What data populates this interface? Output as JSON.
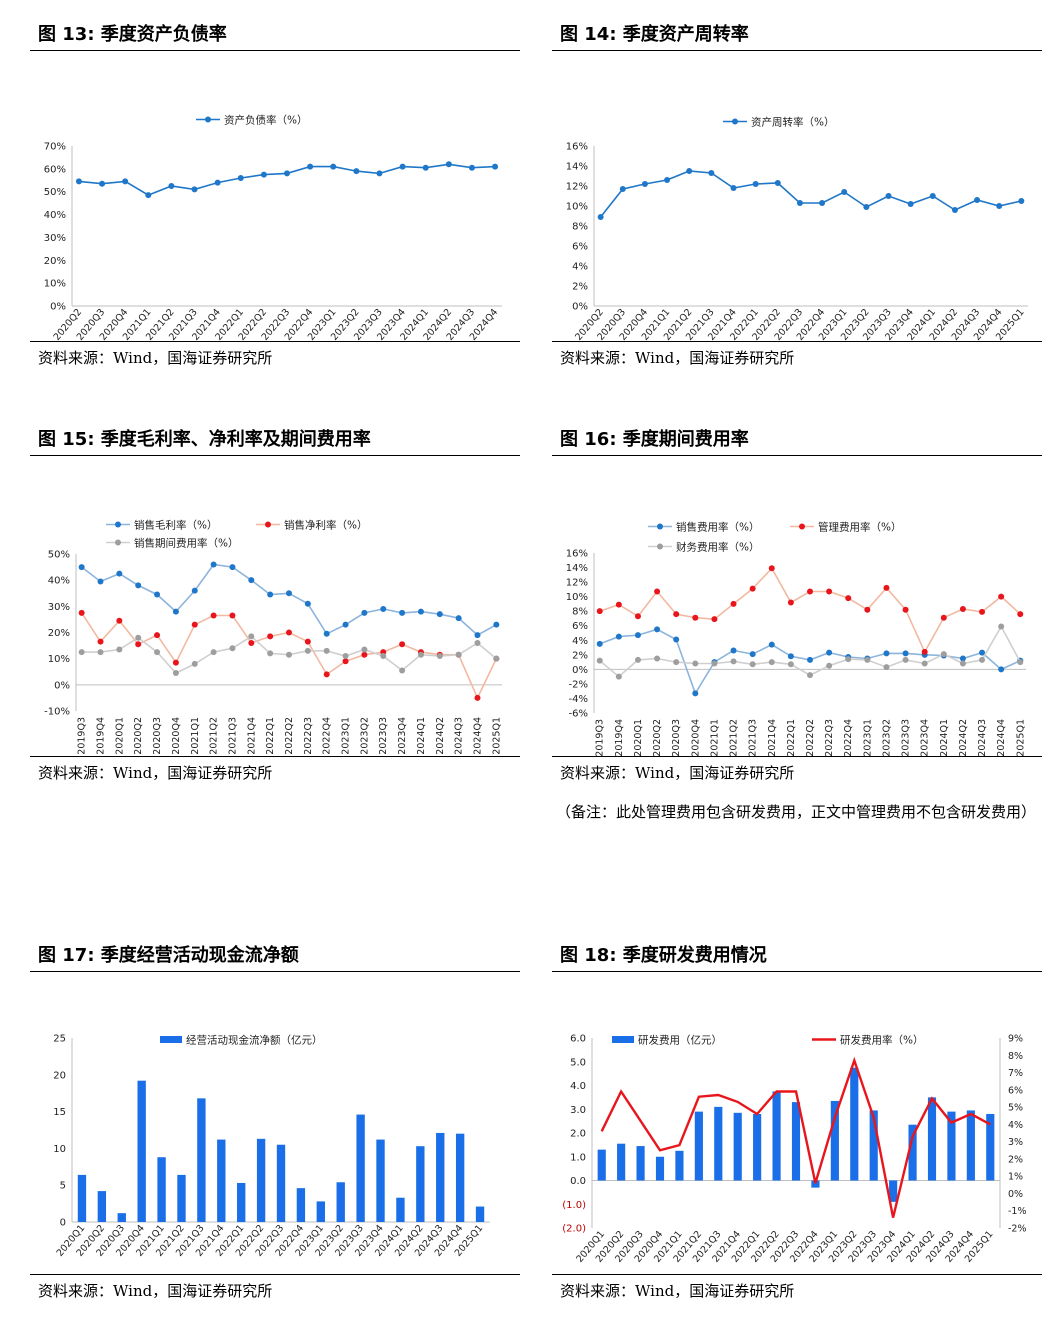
{
  "figures": [
    {
      "title": "图 13:  季度资产负债率",
      "source": "资料来源：Wind，国海证券研究所",
      "chart_data": {
        "type": "line",
        "categories": [
          "2020Q2",
          "2020Q3",
          "2020Q4",
          "2021Q1",
          "2021Q2",
          "2021Q3",
          "2021Q4",
          "2022Q1",
          "2022Q2",
          "2022Q3",
          "2022Q4",
          "2023Q1",
          "2023Q2",
          "2023Q3",
          "2023Q4",
          "2024Q1",
          "2024Q2",
          "2024Q3",
          "2024Q4"
        ],
        "series": [
          {
            "name": "资产负债率（%）",
            "color": "#1f77c9",
            "marker": "#1f77c9",
            "values": [
              54.5,
              53.5,
              54.5,
              48.5,
              52.5,
              51,
              54,
              56,
              57.5,
              58,
              61,
              61,
              59,
              58,
              61,
              60.5,
              62,
              60.5,
              61
            ]
          }
        ],
        "yticks": [
          "70%",
          "60%",
          "50%",
          "40%",
          "30%",
          "20%",
          "10%",
          "0%"
        ],
        "ylim": [
          0,
          70
        ],
        "legend": "top"
      }
    },
    {
      "title": "图 14:  季度资产周转率",
      "source": "资料来源：Wind，国海证券研究所",
      "chart_data": {
        "type": "line",
        "categories": [
          "2020Q2",
          "2020Q3",
          "2020Q4",
          "2021Q1",
          "2021Q2",
          "2021Q3",
          "2021Q4",
          "2022Q1",
          "2022Q2",
          "2022Q3",
          "2022Q4",
          "2023Q1",
          "2023Q2",
          "2023Q3",
          "2023Q4",
          "2024Q1",
          "2024Q2",
          "2024Q3",
          "2024Q4",
          "2025Q1"
        ],
        "series": [
          {
            "name": "资产周转率（%）",
            "color": "#1f77c9",
            "marker": "#1f77c9",
            "values": [
              8.9,
              11.7,
              12.2,
              12.6,
              13.5,
              13.3,
              11.8,
              12.2,
              12.3,
              10.3,
              10.3,
              11.4,
              9.9,
              11,
              10.2,
              11,
              9.6,
              10.6,
              10,
              10.5
            ]
          }
        ],
        "yticks": [
          "16%",
          "14%",
          "12%",
          "10%",
          "8%",
          "6%",
          "4%",
          "2%",
          "0%"
        ],
        "ylim": [
          0,
          16
        ],
        "legend": "top"
      }
    },
    {
      "title": "图 15:  季度毛利率、净利率及期间费用率",
      "source": "资料来源：Wind，国海证券研究所",
      "chart_data": {
        "type": "line",
        "categories": [
          "2019Q3",
          "2019Q4",
          "2020Q1",
          "2020Q2",
          "2020Q3",
          "2020Q4",
          "2021Q1",
          "2021Q2",
          "2021Q3",
          "2021Q4",
          "2022Q1",
          "2022Q2",
          "2022Q3",
          "2022Q4",
          "2023Q1",
          "2023Q2",
          "2023Q3",
          "2023Q4",
          "2024Q1",
          "2024Q2",
          "2024Q3",
          "2024Q4",
          "2025Q1"
        ],
        "series": [
          {
            "name": "销售毛利率（%）",
            "color": "#8db4dc",
            "marker": "#1f77c9",
            "values": [
              45,
              39.5,
              42.5,
              38,
              34.5,
              28,
              36,
              46,
              45,
              40,
              34.5,
              35,
              31,
              19.5,
              23,
              27.5,
              29,
              27.5,
              28,
              27,
              25.5,
              19,
              23
            ]
          },
          {
            "name": "销售净利率（%）",
            "color": "#f3b8a0",
            "marker": "#e8161c",
            "values": [
              27.5,
              16.5,
              24.5,
              15.5,
              19,
              8.5,
              23,
              26.5,
              26.5,
              16,
              18.5,
              20,
              16.5,
              4,
              9,
              11.5,
              12.5,
              15.5,
              12.5,
              11.5,
              11.5,
              -5,
              10
            ]
          },
          {
            "name": "销售期间费用率（%）",
            "color": "#cfcfcf",
            "marker": "#9e9e9e",
            "values": [
              12.5,
              12.5,
              13.5,
              18,
              12.5,
              4.5,
              8,
              12.5,
              14,
              18.5,
              12,
              11.5,
              13,
              13,
              11,
              13.5,
              11,
              5.5,
              11.5,
              11,
              11.5,
              16,
              10
            ]
          }
        ],
        "yticks": [
          "50%",
          "40%",
          "30%",
          "20%",
          "10%",
          "0%",
          "-10%"
        ],
        "ylim": [
          -10,
          50
        ],
        "legend": "top"
      }
    },
    {
      "title": "图 16:  季度期间费用率",
      "source": "资料来源：Wind，国海证券研究所",
      "note": "（备注：此处管理费用包含研发费用，正文中管理费用不包含研发费用）",
      "chart_data": {
        "type": "line",
        "categories": [
          "2019Q3",
          "2019Q4",
          "2020Q1",
          "2020Q2",
          "2020Q3",
          "2020Q4",
          "2021Q1",
          "2021Q2",
          "2021Q3",
          "2021Q4",
          "2022Q1",
          "2022Q2",
          "2022Q3",
          "2022Q4",
          "2023Q1",
          "2023Q2",
          "2023Q3",
          "2023Q4",
          "2024Q1",
          "2024Q2",
          "2024Q3",
          "2024Q4",
          "2025Q1"
        ],
        "series": [
          {
            "name": "销售费用率（%）",
            "color": "#8db4dc",
            "marker": "#1f77c9",
            "values": [
              3.5,
              4.5,
              4.7,
              5.5,
              4.1,
              -3.3,
              1,
              2.6,
              2.1,
              3.4,
              1.8,
              1.3,
              2.3,
              1.7,
              1.5,
              2.2,
              2.2,
              2,
              1.9,
              1.5,
              2.3,
              0,
              1.2
            ]
          },
          {
            "name": "管理费用率（%）",
            "color": "#f3b8a0",
            "marker": "#e8161c",
            "values": [
              8,
              8.9,
              7.3,
              10.7,
              7.6,
              7.1,
              6.9,
              9,
              11.1,
              13.9,
              9.2,
              10.7,
              10.7,
              9.8,
              8.2,
              11.2,
              8.2,
              2.4,
              7.1,
              8.3,
              7.9,
              10,
              7.6
            ]
          },
          {
            "name": "财务费用率（%）",
            "color": "#cfcfcf",
            "marker": "#9e9e9e",
            "values": [
              1.2,
              -1,
              1.3,
              1.5,
              1,
              0.8,
              0.8,
              1.1,
              0.7,
              1,
              0.7,
              -0.8,
              0.5,
              1.4,
              1.3,
              0.3,
              1.3,
              0.8,
              2.1,
              0.8,
              1.3,
              5.9,
              1
            ]
          }
        ],
        "yticks": [
          "16%",
          "14%",
          "12%",
          "10%",
          "8%",
          "6%",
          "4%",
          "2%",
          "0%",
          "-2%",
          "-4%",
          "-6%"
        ],
        "ylim": [
          -6,
          16
        ],
        "legend": "top"
      }
    },
    {
      "title": "图 17:   季度经营活动现金流净额",
      "source": "资料来源：Wind，国海证券研究所",
      "chart_data": {
        "type": "bar",
        "categories": [
          "2020Q1",
          "2020Q2",
          "2020Q3",
          "2020Q4",
          "2021Q1",
          "2021Q2",
          "2021Q3",
          "2021Q4",
          "2022Q1",
          "2022Q2",
          "2022Q3",
          "2022Q4",
          "2023Q1",
          "2023Q2",
          "2023Q3",
          "2023Q4",
          "2024Q1",
          "2024Q2",
          "2024Q3",
          "2024Q4",
          "2025Q1"
        ],
        "series": [
          {
            "name": "经营活动现金流净额（亿元）",
            "color": "#1a6fe8",
            "values": [
              6.4,
              4.2,
              1.2,
              19.2,
              8.8,
              6.4,
              16.8,
              11.2,
              5.3,
              11.3,
              10.5,
              4.6,
              2.8,
              5.4,
              14.6,
              11.2,
              3.3,
              10.3,
              12.1,
              12,
              2.1
            ]
          }
        ],
        "yticks": [
          "25",
          "20",
          "15",
          "10",
          "5",
          "0"
        ],
        "ylim": [
          0,
          25
        ],
        "legend": "top"
      }
    },
    {
      "title": "图 18:  季度研发费用情况",
      "source": "资料来源：Wind，国海证券研究所",
      "chart_data": {
        "type": "bar",
        "categories": [
          "2020Q1",
          "2020Q2",
          "2020Q3",
          "2020Q4",
          "2021Q1",
          "2021Q2",
          "2021Q3",
          "2021Q4",
          "2022Q1",
          "2022Q2",
          "2022Q3",
          "2022Q4",
          "2023Q1",
          "2023Q2",
          "2023Q3",
          "2023Q4",
          "2024Q1",
          "2024Q2",
          "2024Q3",
          "2024Q4",
          "2025Q1"
        ],
        "series": [
          {
            "name": "研发费用（亿元）",
            "color": "#1a6fe8",
            "axis": "left",
            "values": [
              1.3,
              1.55,
              1.45,
              1.0,
              1.25,
              2.9,
              3.1,
              2.85,
              2.8,
              3.75,
              3.3,
              -0.3,
              3.35,
              4.75,
              2.95,
              -0.9,
              2.35,
              3.5,
              2.9,
              2.95,
              2.8
            ]
          },
          {
            "name": "研发费用率（%）",
            "color": "#e8161c",
            "axis": "right",
            "values": [
              3.6,
              5.9,
              4.2,
              2.5,
              2.8,
              5.6,
              5.7,
              5.3,
              4.6,
              5.9,
              5.9,
              0.6,
              4.4,
              7.7,
              4.4,
              -1.4,
              3.3,
              5.5,
              4.1,
              4.6,
              4.0
            ]
          }
        ],
        "yticks": [
          "6.0",
          "5.0",
          "4.0",
          "3.0",
          "2.0",
          "1.0",
          "0.0",
          "(1.0)",
          "(2.0)"
        ],
        "ylim": [
          -2,
          6
        ],
        "y2ticks": [
          "9%",
          "8%",
          "7%",
          "6%",
          "5%",
          "4%",
          "3%",
          "2%",
          "1%",
          "0%",
          "-1%",
          "-2%"
        ],
        "y2lim": [
          -2,
          9
        ],
        "legend": "top"
      }
    }
  ]
}
